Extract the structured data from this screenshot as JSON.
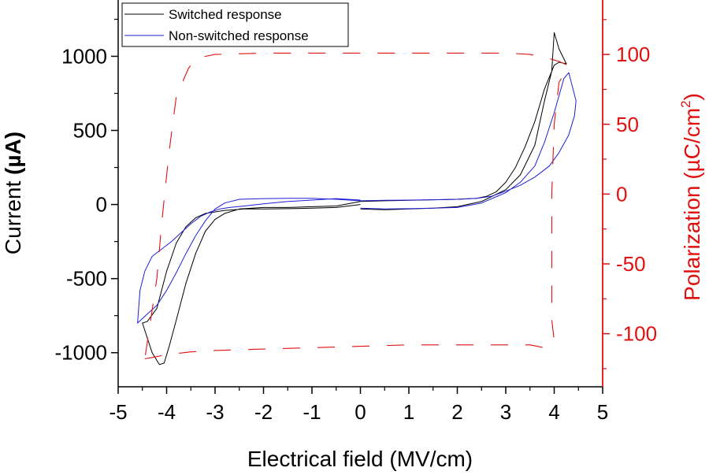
{
  "chart_data": {
    "type": "line",
    "xlabel": "Electrical field (MV/cm)",
    "ylabel": "Current (µA)",
    "ylabel_parts": {
      "main": "Current ",
      "unit": "(µA)"
    },
    "y2label_parts": {
      "main": "Polarization ",
      "unit_open": "(µC/cm",
      "sup": "2",
      "unit_close": ")"
    },
    "xlim": [
      -5,
      5
    ],
    "ylim": [
      -1230,
      1380
    ],
    "y2lim": [
      -138,
      139
    ],
    "xticks": [
      -5,
      -4,
      -3,
      -2,
      -1,
      0,
      1,
      2,
      3,
      4,
      5
    ],
    "yticks": [
      -1000,
      -500,
      0,
      500,
      1000
    ],
    "y2ticks": [
      -100,
      -50,
      0,
      50,
      100
    ],
    "grid": false,
    "legend_position": "top-left",
    "colors": {
      "switched": "#000000",
      "non_switched": "#1f1fd6",
      "polarization": "#e01010",
      "right_axis": "#e01010"
    },
    "series": [
      {
        "name": "Switched response",
        "axis": "left",
        "x": [
          0.0,
          0.5,
          1.0,
          1.5,
          2.0,
          2.5,
          3.0,
          3.3,
          3.6,
          3.8,
          3.95,
          4.0,
          4.1,
          4.25,
          4.1,
          4.0,
          3.8,
          3.6,
          3.4,
          3.2,
          3.0,
          2.8,
          2.6,
          2.4,
          2.0,
          1.5,
          1.0,
          0.5,
          0.0,
          -0.5,
          -1.0,
          -1.5,
          -2.0,
          -2.5,
          -2.8,
          -3.0,
          -3.2,
          -3.4,
          -3.6,
          -3.8,
          -3.95,
          -4.05,
          -4.15,
          -4.3,
          -4.4,
          -4.5,
          -4.4,
          -4.2,
          -4.0,
          -3.8,
          -3.6,
          -3.4,
          -3.2,
          -3.0,
          -2.8,
          -2.6,
          -2.4,
          -2.0,
          -1.5,
          -1.0,
          -0.5,
          0.0
        ],
        "y": [
          -30,
          -35,
          -30,
          -25,
          -15,
          20,
          100,
          200,
          400,
          700,
          900,
          1160,
          1050,
          950,
          960,
          940,
          780,
          560,
          390,
          250,
          150,
          85,
          55,
          42,
          35,
          32,
          28,
          25,
          20,
          -10,
          -15,
          -20,
          -20,
          -30,
          -60,
          -100,
          -180,
          -330,
          -530,
          -780,
          -960,
          -1070,
          -1080,
          -1000,
          -900,
          -800,
          -790,
          -700,
          -450,
          -260,
          -150,
          -90,
          -60,
          -50,
          -40,
          -35,
          -30,
          -30,
          -28,
          -25,
          -20,
          0
        ]
      },
      {
        "name": "Non-switched response",
        "axis": "left",
        "x": [
          0.0,
          0.5,
          1.0,
          1.5,
          2.0,
          2.5,
          3.0,
          3.3,
          3.6,
          3.8,
          4.0,
          4.2,
          4.3,
          4.45,
          4.42,
          4.3,
          4.1,
          3.9,
          3.6,
          3.3,
          3.0,
          2.7,
          2.4,
          2.0,
          1.5,
          1.0,
          0.5,
          0.0,
          -0.5,
          -1.0,
          -1.5,
          -2.0,
          -2.5,
          -2.8,
          -3.0,
          -3.2,
          -3.4,
          -3.6,
          -3.8,
          -4.0,
          -4.2,
          -4.4,
          -4.6,
          -4.55,
          -4.45,
          -4.3,
          -4.1,
          -3.9,
          -3.7,
          -3.5,
          -3.3,
          -3.1,
          -2.9,
          -2.7,
          -2.4,
          -2.0,
          -1.5,
          -1.0,
          -0.5,
          0.0
        ],
        "y": [
          -25,
          -30,
          -28,
          -25,
          -20,
          10,
          80,
          150,
          260,
          420,
          620,
          850,
          890,
          700,
          600,
          470,
          350,
          260,
          185,
          130,
          90,
          55,
          42,
          35,
          32,
          30,
          28,
          25,
          35,
          42,
          42,
          40,
          35,
          10,
          -30,
          -110,
          -210,
          -330,
          -460,
          -580,
          -680,
          -740,
          -800,
          -580,
          -450,
          -350,
          -300,
          -250,
          -190,
          -130,
          -80,
          -50,
          -30,
          -20,
          -10,
          5,
          20,
          30,
          40,
          30
        ]
      },
      {
        "name": "",
        "axis": "right",
        "dashed": true,
        "x": [
          -4.45,
          -4.3,
          -4.0,
          -3.5,
          -3.0,
          -2.0,
          -1.0,
          0.0,
          1.0,
          2.0,
          3.0,
          3.5,
          3.8,
          4.0,
          3.95,
          3.95,
          3.95,
          4.0,
          4.1,
          4.3,
          4.1,
          4.0,
          3.8,
          3.5,
          3.0,
          2.0,
          1.0,
          0.0,
          -1.0,
          -2.0,
          -3.0,
          -3.3,
          -3.45,
          -3.55,
          -3.8,
          -3.95,
          -4.1,
          -4.2,
          -4.35,
          -4.45
        ],
        "y": [
          -118,
          -117,
          -115,
          -113,
          -112,
          -111,
          -110,
          -109,
          -108,
          -108,
          -108,
          -108,
          -110,
          -105,
          -90,
          -60,
          0,
          50,
          80,
          92,
          95,
          96,
          98,
          100,
          101,
          101,
          101,
          101,
          101,
          101,
          100,
          98,
          95,
          90,
          70,
          30,
          -20,
          -60,
          -95,
          -118
        ]
      }
    ]
  }
}
